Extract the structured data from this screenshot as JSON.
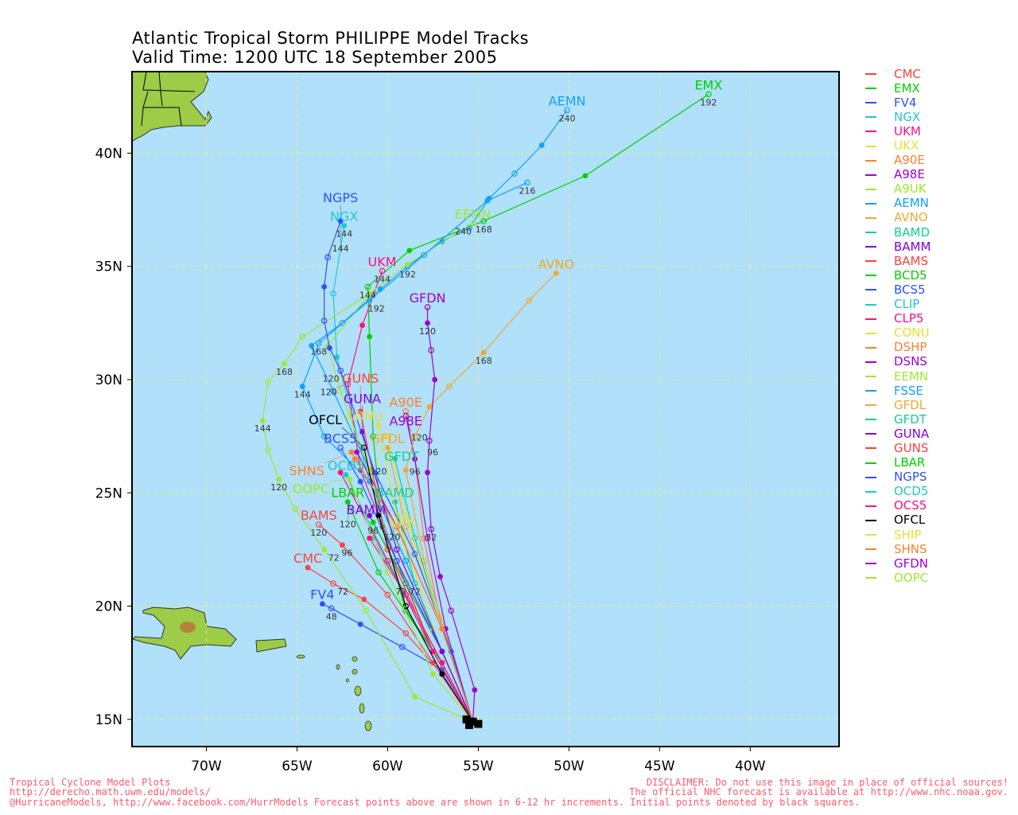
{
  "chart_data": {
    "type": "line",
    "title": "Atlantic Tropical Storm PHILIPPE Model Tracks",
    "subtitle": "Valid Time: 1200 UTC 18 September 2005",
    "xlim": [
      -74.1,
      -35.1
    ],
    "ylim": [
      13.8,
      43.6
    ],
    "x_ticks": [
      {
        "v": -70,
        "t": "70W"
      },
      {
        "v": -65,
        "t": "65W"
      },
      {
        "v": -60,
        "t": "60W"
      },
      {
        "v": -55,
        "t": "55W"
      },
      {
        "v": -50,
        "t": "50W"
      },
      {
        "v": -45,
        "t": "45W"
      },
      {
        "v": -40,
        "t": "40W"
      }
    ],
    "y_ticks": [
      {
        "v": 15,
        "t": "15N"
      },
      {
        "v": 20,
        "t": "20N"
      },
      {
        "v": 25,
        "t": "25N"
      },
      {
        "v": 30,
        "t": "30N"
      },
      {
        "v": 35,
        "t": "35N"
      },
      {
        "v": 40,
        "t": "40N"
      }
    ],
    "grid": true,
    "legend_position": "right",
    "start": [
      -55.3,
      14.9
    ],
    "series": [
      {
        "name": "CMC",
        "color": "#ff4040",
        "label": true,
        "pts": [
          [
            -57,
            17
          ],
          [
            -59,
            18.8
          ],
          [
            -61.3,
            20.3
          ],
          [
            -63,
            21.0
          ],
          [
            -64.4,
            21.7
          ]
        ],
        "hr": {
          "3": "72"
        }
      },
      {
        "name": "EMX",
        "color": "#00d000",
        "label": true,
        "pts": [
          [
            -57,
            17.5
          ],
          [
            -59,
            19.8
          ],
          [
            -60.3,
            23.5
          ],
          [
            -60.8,
            27.5
          ],
          [
            -61,
            31.9
          ],
          [
            -61.1,
            34.1
          ],
          [
            -58.8,
            35.7
          ],
          [
            -54.7,
            37.0
          ],
          [
            -49.1,
            39.0
          ],
          [
            -42.3,
            42.6
          ]
        ],
        "hr": {
          "5": "144",
          "7": "168",
          "9": "192"
        }
      },
      {
        "name": "FV4",
        "color": "#3050ff",
        "label": true,
        "pts": [
          [
            -57,
            17.2
          ],
          [
            -59.2,
            18.2
          ],
          [
            -61.5,
            19.2
          ],
          [
            -63.1,
            19.9
          ],
          [
            -63.6,
            20.1
          ]
        ],
        "hr": {
          "3": "48"
        }
      },
      {
        "name": "NGX",
        "color": "#20c8c8",
        "label": true,
        "pts": [
          [
            -57.5,
            18
          ],
          [
            -59.5,
            22
          ],
          [
            -61,
            25.5
          ],
          [
            -62,
            28.5
          ],
          [
            -62.8,
            31
          ],
          [
            -63,
            33.8
          ],
          [
            -62.4,
            36.8
          ]
        ],
        "hr": {
          "6": "144"
        }
      },
      {
        "name": "UKM",
        "color": "#ff1080",
        "label": true,
        "pts": [
          [
            -57.5,
            18
          ],
          [
            -59.5,
            22
          ],
          [
            -61.5,
            26
          ],
          [
            -62.2,
            29.8
          ],
          [
            -61.4,
            32.4
          ],
          [
            -60.3,
            34.8
          ]
        ],
        "hr": {
          "3": "120",
          "5": "144"
        }
      },
      {
        "name": "UKX",
        "color": "#e8e030",
        "label": true,
        "pts": [
          [
            -57.5,
            19
          ],
          [
            -59.2,
            23.3
          ]
        ],
        "hr": {}
      },
      {
        "name": "A90E",
        "color": "#ff8030",
        "label": true,
        "pts": [
          [
            -57,
            19
          ],
          [
            -58,
            23
          ],
          [
            -58.5,
            26.5
          ],
          [
            -59,
            28.6
          ]
        ],
        "hr": {
          "2": "96"
        }
      },
      {
        "name": "A98E",
        "color": "#a000d0",
        "label": true,
        "pts": [
          [
            -56.8,
            19
          ],
          [
            -57.8,
            23
          ],
          [
            -58.5,
            26.5
          ],
          [
            -59,
            28.4
          ]
        ],
        "hr": {
          "3": "120"
        }
      },
      {
        "name": "A9UK",
        "color": "#a0e830",
        "label": false,
        "pts": [
          [
            -58.5,
            16
          ],
          [
            -61.2,
            19.8
          ],
          [
            -63.5,
            22.5
          ],
          [
            -65.1,
            24.3
          ],
          [
            -66,
            25.6
          ],
          [
            -66.6,
            26.9
          ],
          [
            -66.9,
            28.2
          ],
          [
            -66.6,
            29.9
          ],
          [
            -65.7,
            30.7
          ],
          [
            -64.7,
            31.9
          ],
          [
            -61,
            33.8
          ]
        ],
        "hr": {
          "2": "72",
          "4": "120",
          "6": "144",
          "8": "168",
          "10": "192"
        }
      },
      {
        "name": "AEMN",
        "color": "#10a0ff",
        "label": true,
        "pts": [
          [
            -57,
            18
          ],
          [
            -59,
            22
          ],
          [
            -61,
            26
          ],
          [
            -63,
            29.5
          ],
          [
            -64.2,
            31.5
          ],
          [
            -62.5,
            32.5
          ],
          [
            -60.4,
            34.0
          ],
          [
            -58.9,
            35.0
          ],
          [
            -57,
            36.1
          ],
          [
            -55.5,
            36.7
          ],
          [
            -54.4,
            38.0
          ],
          [
            -53,
            39.1
          ],
          [
            -51.5,
            40.35
          ],
          [
            -50.1,
            41.9
          ]
        ],
        "hr": {
          "7": "192",
          "13": "240"
        }
      },
      {
        "name": "AVNO",
        "color": "#f0a830",
        "label": true,
        "pts": [
          [
            -56.5,
            18
          ],
          [
            -58,
            22
          ],
          [
            -59,
            26
          ],
          [
            -58.5,
            27.5
          ],
          [
            -57.7,
            28.8
          ],
          [
            -56.6,
            29.7
          ],
          [
            -54.7,
            31.2
          ],
          [
            -52.2,
            33.5
          ],
          [
            -50.7,
            34.7
          ]
        ],
        "hr": {
          "6": "168"
        }
      },
      {
        "name": "BAMD",
        "color": "#10d090",
        "label": true,
        "pts": [
          [
            -57,
            18
          ],
          [
            -58.5,
            21
          ],
          [
            -59.6,
            24.6
          ]
        ],
        "hr": {
          "1": "72"
        }
      },
      {
        "name": "BAMM",
        "color": "#8000e0",
        "label": true,
        "pts": [
          [
            -57,
            18
          ],
          [
            -59,
            21
          ],
          [
            -61,
            24.0
          ]
        ],
        "hr": {
          "1": "72"
        }
      },
      {
        "name": "BAMS",
        "color": "#ff4040",
        "label": true,
        "pts": [
          [
            -57.5,
            17.5
          ],
          [
            -60,
            20.5
          ],
          [
            -62.5,
            22.7
          ],
          [
            -63.8,
            23.6
          ]
        ],
        "hr": {
          "2": "96",
          "3": "120"
        }
      },
      {
        "name": "BCD5",
        "color": "#00d000",
        "label": false,
        "pts": [
          [
            -57,
            18
          ],
          [
            -59,
            21
          ],
          [
            -60.8,
            23.7
          ]
        ],
        "hr": {
          "2": "96"
        }
      },
      {
        "name": "BCS5",
        "color": "#3050ff",
        "label": true,
        "pts": [
          [
            -57,
            18
          ],
          [
            -59.5,
            22
          ],
          [
            -61.5,
            25.5
          ],
          [
            -62.6,
            27.0
          ]
        ],
        "hr": {}
      },
      {
        "name": "CLIP",
        "color": "#20c8c8",
        "label": false,
        "pts": [
          [
            -57,
            17.5
          ],
          [
            -59,
            20.5
          ],
          [
            -60.8,
            23
          ]
        ],
        "hr": {}
      },
      {
        "name": "CLP5",
        "color": "#ff1080",
        "label": false,
        "pts": [
          [
            -57,
            17.5
          ],
          [
            -59,
            20.5
          ],
          [
            -61,
            23
          ]
        ],
        "hr": {}
      },
      {
        "name": "CONU",
        "color": "#e8e030",
        "label": true,
        "pts": [
          [
            -57.5,
            19
          ],
          [
            -59.5,
            24
          ],
          [
            -60.5,
            28.0
          ]
        ],
        "hr": {
          "2": "120"
        }
      },
      {
        "name": "DSHP",
        "color": "#ff8030",
        "label": false,
        "pts": [
          [
            -57,
            19
          ],
          [
            -59.5,
            23.5
          ],
          [
            -61.8,
            26.5
          ]
        ],
        "hr": {}
      },
      {
        "name": "DSNS",
        "color": "#a000d0",
        "label": false,
        "pts": [
          [
            -57,
            19
          ],
          [
            -59.5,
            23.5
          ],
          [
            -61.7,
            26.8
          ]
        ],
        "hr": {}
      },
      {
        "name": "EEMN",
        "color": "#a0e830",
        "label": true,
        "pts": [
          [
            -57,
            18
          ],
          [
            -59,
            22
          ],
          [
            -61,
            26
          ],
          [
            -62.6,
            29.5
          ],
          [
            -63.3,
            31.5
          ],
          [
            -61,
            33.8
          ],
          [
            -58.9,
            35.1
          ],
          [
            -55.3,
            36.9
          ]
        ],
        "hr": {
          "7": "240"
        }
      },
      {
        "name": "FSSE",
        "color": "#10a0ff",
        "label": false,
        "pts": [
          [
            -57,
            18
          ],
          [
            -59,
            22
          ],
          [
            -61,
            25.5
          ],
          [
            -63.5,
            27.5
          ],
          [
            -64.7,
            29.7
          ],
          [
            -63.8,
            31.6
          ],
          [
            -61,
            33.5
          ],
          [
            -58,
            35.5
          ],
          [
            -54.5,
            37.9
          ],
          [
            -52.3,
            38.7
          ]
        ],
        "hr": {
          "4": "144",
          "5": "168",
          "9": "216"
        }
      },
      {
        "name": "GFDL",
        "color": "#f0a830",
        "label": true,
        "pts": [
          [
            -57,
            19
          ],
          [
            -59,
            23.5
          ],
          [
            -60,
            27
          ]
        ],
        "hr": {}
      },
      {
        "name": "GFDT",
        "color": "#10d090",
        "label": true,
        "pts": [
          [
            -57,
            19
          ],
          [
            -58.5,
            23
          ],
          [
            -59.6,
            26.5
          ]
        ],
        "hr": {}
      },
      {
        "name": "GUNA",
        "color": "#8000e0",
        "label": true,
        "pts": [
          [
            -57,
            18
          ],
          [
            -59.5,
            22.5
          ],
          [
            -61.4,
            27.7
          ]
        ],
        "hr": {}
      },
      {
        "name": "GUNS",
        "color": "#ff4040",
        "label": true,
        "pts": [
          [
            -57.5,
            18
          ],
          [
            -60,
            22.5
          ],
          [
            -61.5,
            28.6
          ]
        ],
        "hr": {}
      },
      {
        "name": "LBAR",
        "color": "#00d000",
        "label": true,
        "pts": [
          [
            -57.5,
            18
          ],
          [
            -60.5,
            21.5
          ],
          [
            -62.2,
            24.6
          ]
        ],
        "hr": {
          "2": "120"
        }
      },
      {
        "name": "NGPS",
        "color": "#3050ff",
        "label": true,
        "pts": [
          [
            -56.5,
            18
          ],
          [
            -58.5,
            22.3
          ],
          [
            -60.7,
            25.9
          ],
          [
            -62.6,
            30.4
          ],
          [
            -63.2,
            31.4
          ],
          [
            -63.5,
            32.6
          ],
          [
            -63.5,
            34.1
          ],
          [
            -63.3,
            35.4
          ],
          [
            -62.6,
            37.0
          ]
        ],
        "hr": {
          "3": "120",
          "8": "144"
        }
      },
      {
        "name": "OCD5",
        "color": "#20c8c8",
        "label": true,
        "pts": [
          [
            -57.5,
            18
          ],
          [
            -60,
            22
          ],
          [
            -62.3,
            25.8
          ]
        ],
        "hr": {}
      },
      {
        "name": "OCS5",
        "color": "#ff1080",
        "label": false,
        "pts": [
          [
            -57.5,
            18
          ],
          [
            -60,
            22
          ],
          [
            -62.6,
            25.9
          ]
        ],
        "hr": {}
      },
      {
        "name": "OFCL",
        "color": "#000000",
        "label": true,
        "pts": [
          [
            -57,
            17
          ],
          [
            -59,
            20
          ],
          [
            -60.5,
            24
          ],
          [
            -61.3,
            27
          ]
        ],
        "hr": {
          "2": "120"
        }
      },
      {
        "name": "SHIP",
        "color": "#e8e030",
        "label": false,
        "pts": [
          [
            -57,
            19
          ],
          [
            -59,
            24
          ],
          [
            -60,
            27.5
          ]
        ],
        "hr": {}
      },
      {
        "name": "SHNS",
        "color": "#ff8030",
        "label": true,
        "pts": [
          [
            -57,
            19
          ],
          [
            -59.5,
            23.5
          ],
          [
            -62,
            26.8
          ]
        ],
        "hr": {}
      },
      {
        "name": "GFDN",
        "color": "#a000d0",
        "label": true,
        "pts": [
          [
            -55.2,
            16.3
          ],
          [
            -56.5,
            19.8
          ],
          [
            -57.1,
            21.3
          ],
          [
            -57.6,
            23.4
          ],
          [
            -57.8,
            25.9
          ],
          [
            -57.7,
            27.3
          ],
          [
            -57.4,
            30
          ],
          [
            -57.6,
            31.3
          ],
          [
            -57.8,
            32.5
          ],
          [
            -57.8,
            33.2
          ]
        ],
        "hr": {
          "3": "72",
          "5": "96",
          "8": "120"
        }
      },
      {
        "name": "OOPC",
        "color": "#a0e830",
        "label": true,
        "pts": [
          [
            -57.5,
            17
          ],
          [
            -60,
            21.5
          ],
          [
            -62.1,
            25.6
          ]
        ],
        "hr": {}
      }
    ]
  },
  "footer": {
    "left1": "Tropical Cyclone Model Plots",
    "left2": "http://derecho.math.uwm.edu/models/",
    "right1": "DISCLAIMER: Do not use this image in place of official sources!",
    "right2": "The official NHC forecast is available at http://www.nhc.noaa.gov.",
    "bottom": "@HurricaneModels, http://www.facebook.com/HurrModels  Forecast points above are shown in 6-12 hr increments. Initial points denoted by black squares."
  }
}
